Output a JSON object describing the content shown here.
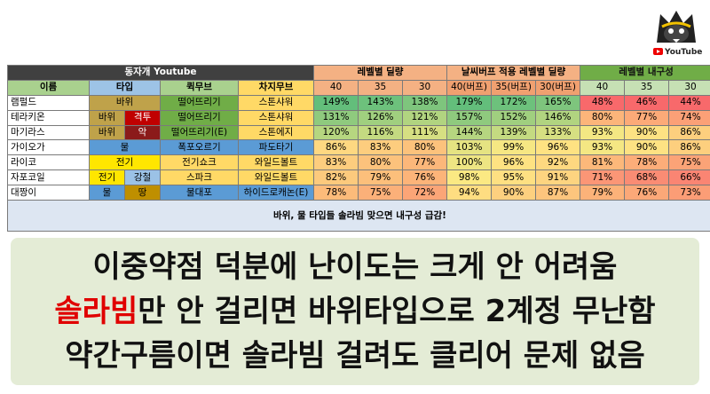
{
  "channel": {
    "logo": "wolf-logo",
    "youtube_label": "YouTube"
  },
  "table": {
    "header_main": "동자개 Youtube",
    "group_damage": "레벨별 딜량",
    "group_weather": "날씨버프 적용 레벨별 딜량",
    "group_endurance": "레벨별 내구성",
    "col_name": "이름",
    "col_type": "타입",
    "col_fast": "퀵무브",
    "col_charged": "차지무브",
    "levels_damage": [
      "40",
      "35",
      "30"
    ],
    "levels_weather": [
      "40(버프)",
      "35(버프)",
      "30(버프)"
    ],
    "levels_endurance": [
      "40",
      "35",
      "30"
    ],
    "rows": [
      {
        "name": "램펄드",
        "types": [
          "바위"
        ],
        "type_cls": [
          "t-rock"
        ],
        "fast": "떨어뜨리기",
        "fast_cls": "m-green",
        "charged": "스톤샤워",
        "charged_cls": "m-yellow",
        "damage": [
          "149%",
          "143%",
          "138%"
        ],
        "weather": [
          "179%",
          "172%",
          "165%"
        ],
        "endurance": [
          "48%",
          "46%",
          "44%"
        ],
        "dc": [
          "#63be7b",
          "#6dc17c",
          "#7ec57d"
        ],
        "wc": [
          "#63be7b",
          "#6dc17c",
          "#7ec57d"
        ],
        "ec": [
          "#f8696b",
          "#f8696b",
          "#f8696b"
        ]
      },
      {
        "name": "테라키온",
        "types": [
          "바위",
          "격투"
        ],
        "type_cls": [
          "t-rock",
          "t-fight"
        ],
        "fast": "떨어뜨리기",
        "fast_cls": "m-green",
        "charged": "스톤샤워",
        "charged_cls": "m-yellow",
        "damage": [
          "131%",
          "126%",
          "121%"
        ],
        "weather": [
          "157%",
          "152%",
          "146%"
        ],
        "endurance": [
          "80%",
          "77%",
          "74%"
        ],
        "dc": [
          "#8fca7e",
          "#a0cf7f",
          "#b1d480"
        ],
        "wc": [
          "#8fca7e",
          "#a0cf7f",
          "#b1d480"
        ],
        "ec": [
          "#fcb57a",
          "#fcaa78",
          "#fba077"
        ]
      },
      {
        "name": "마기라스",
        "types": [
          "바위",
          "악"
        ],
        "type_cls": [
          "t-rock",
          "t-dark"
        ],
        "fast": "떨어뜨리기(E)",
        "fast_cls": "m-green",
        "charged": "스톤에지",
        "charged_cls": "m-yellow",
        "damage": [
          "120%",
          "116%",
          "111%"
        ],
        "weather": [
          "144%",
          "139%",
          "133%"
        ],
        "endurance": [
          "93%",
          "90%",
          "86%"
        ],
        "dc": [
          "#b6d680",
          "#c4da81",
          "#d6df82"
        ],
        "wc": [
          "#b6d680",
          "#c4da81",
          "#d6df82"
        ],
        "ec": [
          "#f4e783",
          "#fde283",
          "#fdcf7e"
        ]
      },
      {
        "name": "가이오가",
        "types": [
          "물"
        ],
        "type_cls": [
          "t-water"
        ],
        "fast": "폭포오르기",
        "fast_cls": "m-blue",
        "charged": "파도타기",
        "charged_cls": "m-blue",
        "damage": [
          "86%",
          "83%",
          "80%"
        ],
        "weather": [
          "103%",
          "99%",
          "96%"
        ],
        "endurance": [
          "93%",
          "90%",
          "86%"
        ],
        "dc": [
          "#fed881",
          "#fdcd7e",
          "#fcc27c"
        ],
        "wc": [
          "#e5e382",
          "#f6e783",
          "#fee282"
        ],
        "ec": [
          "#f4e783",
          "#fde283",
          "#fdcf7e"
        ]
      },
      {
        "name": "라이코",
        "types": [
          "전기"
        ],
        "type_cls": [
          "t-electric"
        ],
        "fast": "전기쇼크",
        "fast_cls": "m-yellow",
        "charged": "와일드볼트",
        "charged_cls": "m-yellow",
        "damage": [
          "83%",
          "80%",
          "77%"
        ],
        "weather": [
          "100%",
          "96%",
          "92%"
        ],
        "endurance": [
          "81%",
          "78%",
          "75%"
        ],
        "dc": [
          "#fdcd7e",
          "#fcc27c",
          "#fcb77a"
        ],
        "wc": [
          "#eee583",
          "#fee282",
          "#fed880"
        ],
        "ec": [
          "#fcb87a",
          "#fcad79",
          "#fba377"
        ]
      },
      {
        "name": "자포코일",
        "types": [
          "전기",
          "강철"
        ],
        "type_cls": [
          "t-electric",
          "t-steel"
        ],
        "fast": "스파크",
        "fast_cls": "m-yellow",
        "charged": "와일드볼트",
        "charged_cls": "m-yellow",
        "damage": [
          "82%",
          "79%",
          "76%"
        ],
        "weather": [
          "98%",
          "95%",
          "91%"
        ],
        "endurance": [
          "71%",
          "68%",
          "66%"
        ],
        "dc": [
          "#fcca7d",
          "#fcbf7b",
          "#fcb479"
        ],
        "wc": [
          "#fbe983",
          "#fee082",
          "#fdd480"
        ],
        "ec": [
          "#fb9676",
          "#fa8c74",
          "#fa8573"
        ]
      },
      {
        "name": "대짱이",
        "types": [
          "물",
          "땅"
        ],
        "type_cls": [
          "t-water",
          "t-ground"
        ],
        "fast": "물대포",
        "fast_cls": "m-blue",
        "charged": "하이드로캐논(E)",
        "charged_cls": "m-blue",
        "damage": [
          "78%",
          "75%",
          "72%"
        ],
        "weather": [
          "94%",
          "90%",
          "87%"
        ],
        "endurance": [
          "79%",
          "76%",
          "73%"
        ],
        "dc": [
          "#fcbb7a",
          "#fbb079",
          "#fba577"
        ],
        "wc": [
          "#fedd81",
          "#fdd07f",
          "#fdc57d"
        ],
        "ec": [
          "#fcb279",
          "#fba878",
          "#fb9d76"
        ]
      }
    ],
    "footer": "바위, 물 타입들 솔라빔 맞으면 내구성 급감!"
  },
  "caption": {
    "line1": "이중약점 덕분에 난이도는 크게 안 어려움",
    "line2_red": "솔라빔",
    "line2_rest": "만 안 걸리면 바위타입으로 2계정 무난함",
    "line3": "약간구름이면 솔라빔 걸려도 클리어 문제 없음"
  }
}
